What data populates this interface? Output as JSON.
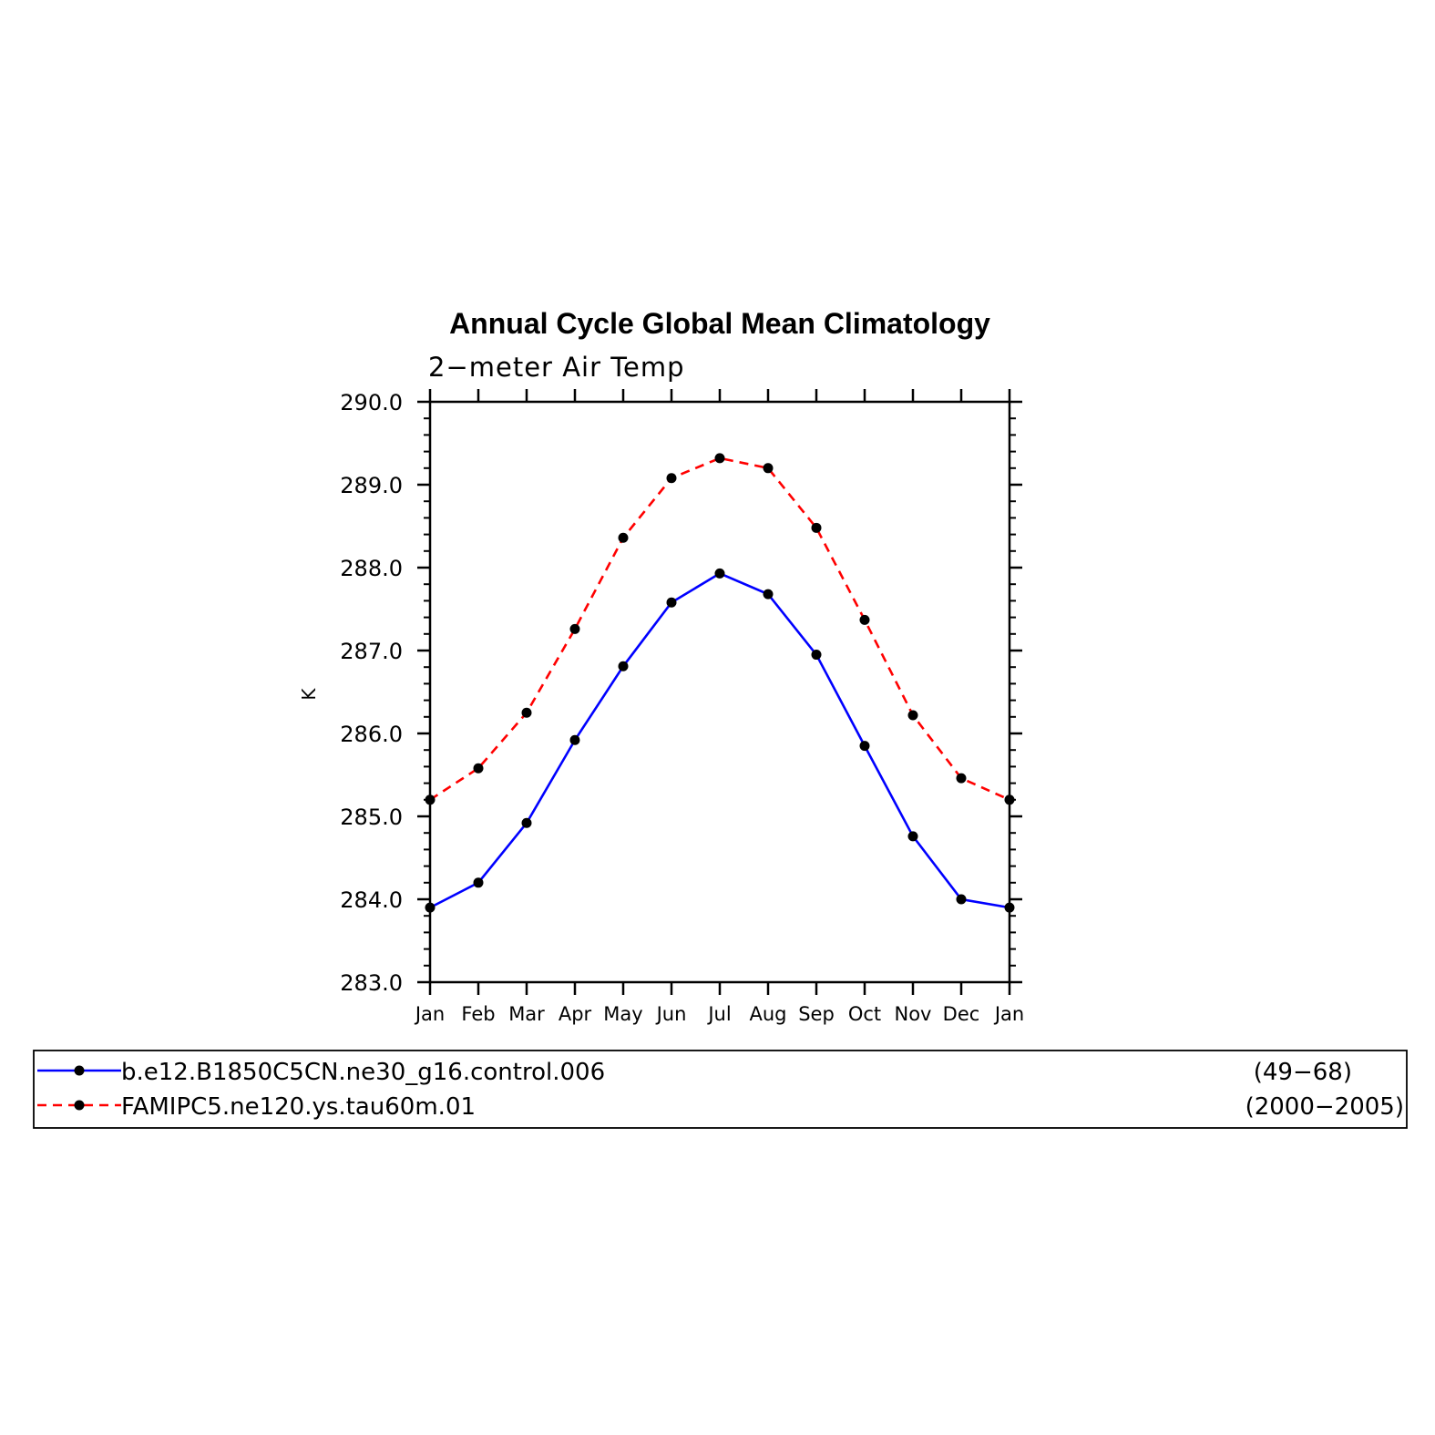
{
  "chart_data": {
    "type": "line",
    "title": "Annual Cycle Global Mean Climatology",
    "subtitle": "2−meter Air Temp",
    "xlabel": "",
    "ylabel": "K",
    "categories": [
      "Jan",
      "Feb",
      "Mar",
      "Apr",
      "May",
      "Jun",
      "Jul",
      "Aug",
      "Sep",
      "Oct",
      "Nov",
      "Dec",
      "Jan"
    ],
    "ylim": [
      283.0,
      290.0
    ],
    "yticks": [
      "283.0",
      "284.0",
      "285.0",
      "286.0",
      "287.0",
      "288.0",
      "289.0",
      "290.0"
    ],
    "grid": false,
    "legend_position": "bottom",
    "series": [
      {
        "name": "b.e12.B1850C5CN.ne30_g16.control.006",
        "period": "(49−68)",
        "color": "#0000ff",
        "style": "solid",
        "values": [
          283.9,
          284.2,
          284.92,
          285.92,
          286.81,
          287.58,
          287.93,
          287.68,
          286.95,
          285.85,
          284.76,
          284.0,
          283.9
        ]
      },
      {
        "name": "FAMIPC5.ne120.ys.tau60m.01",
        "period": "(2000−2005)",
        "color": "#ff0000",
        "style": "dashed",
        "values": [
          285.2,
          285.58,
          286.25,
          287.26,
          288.36,
          289.08,
          289.32,
          289.2,
          288.48,
          287.37,
          286.22,
          285.46,
          285.2
        ]
      }
    ]
  }
}
